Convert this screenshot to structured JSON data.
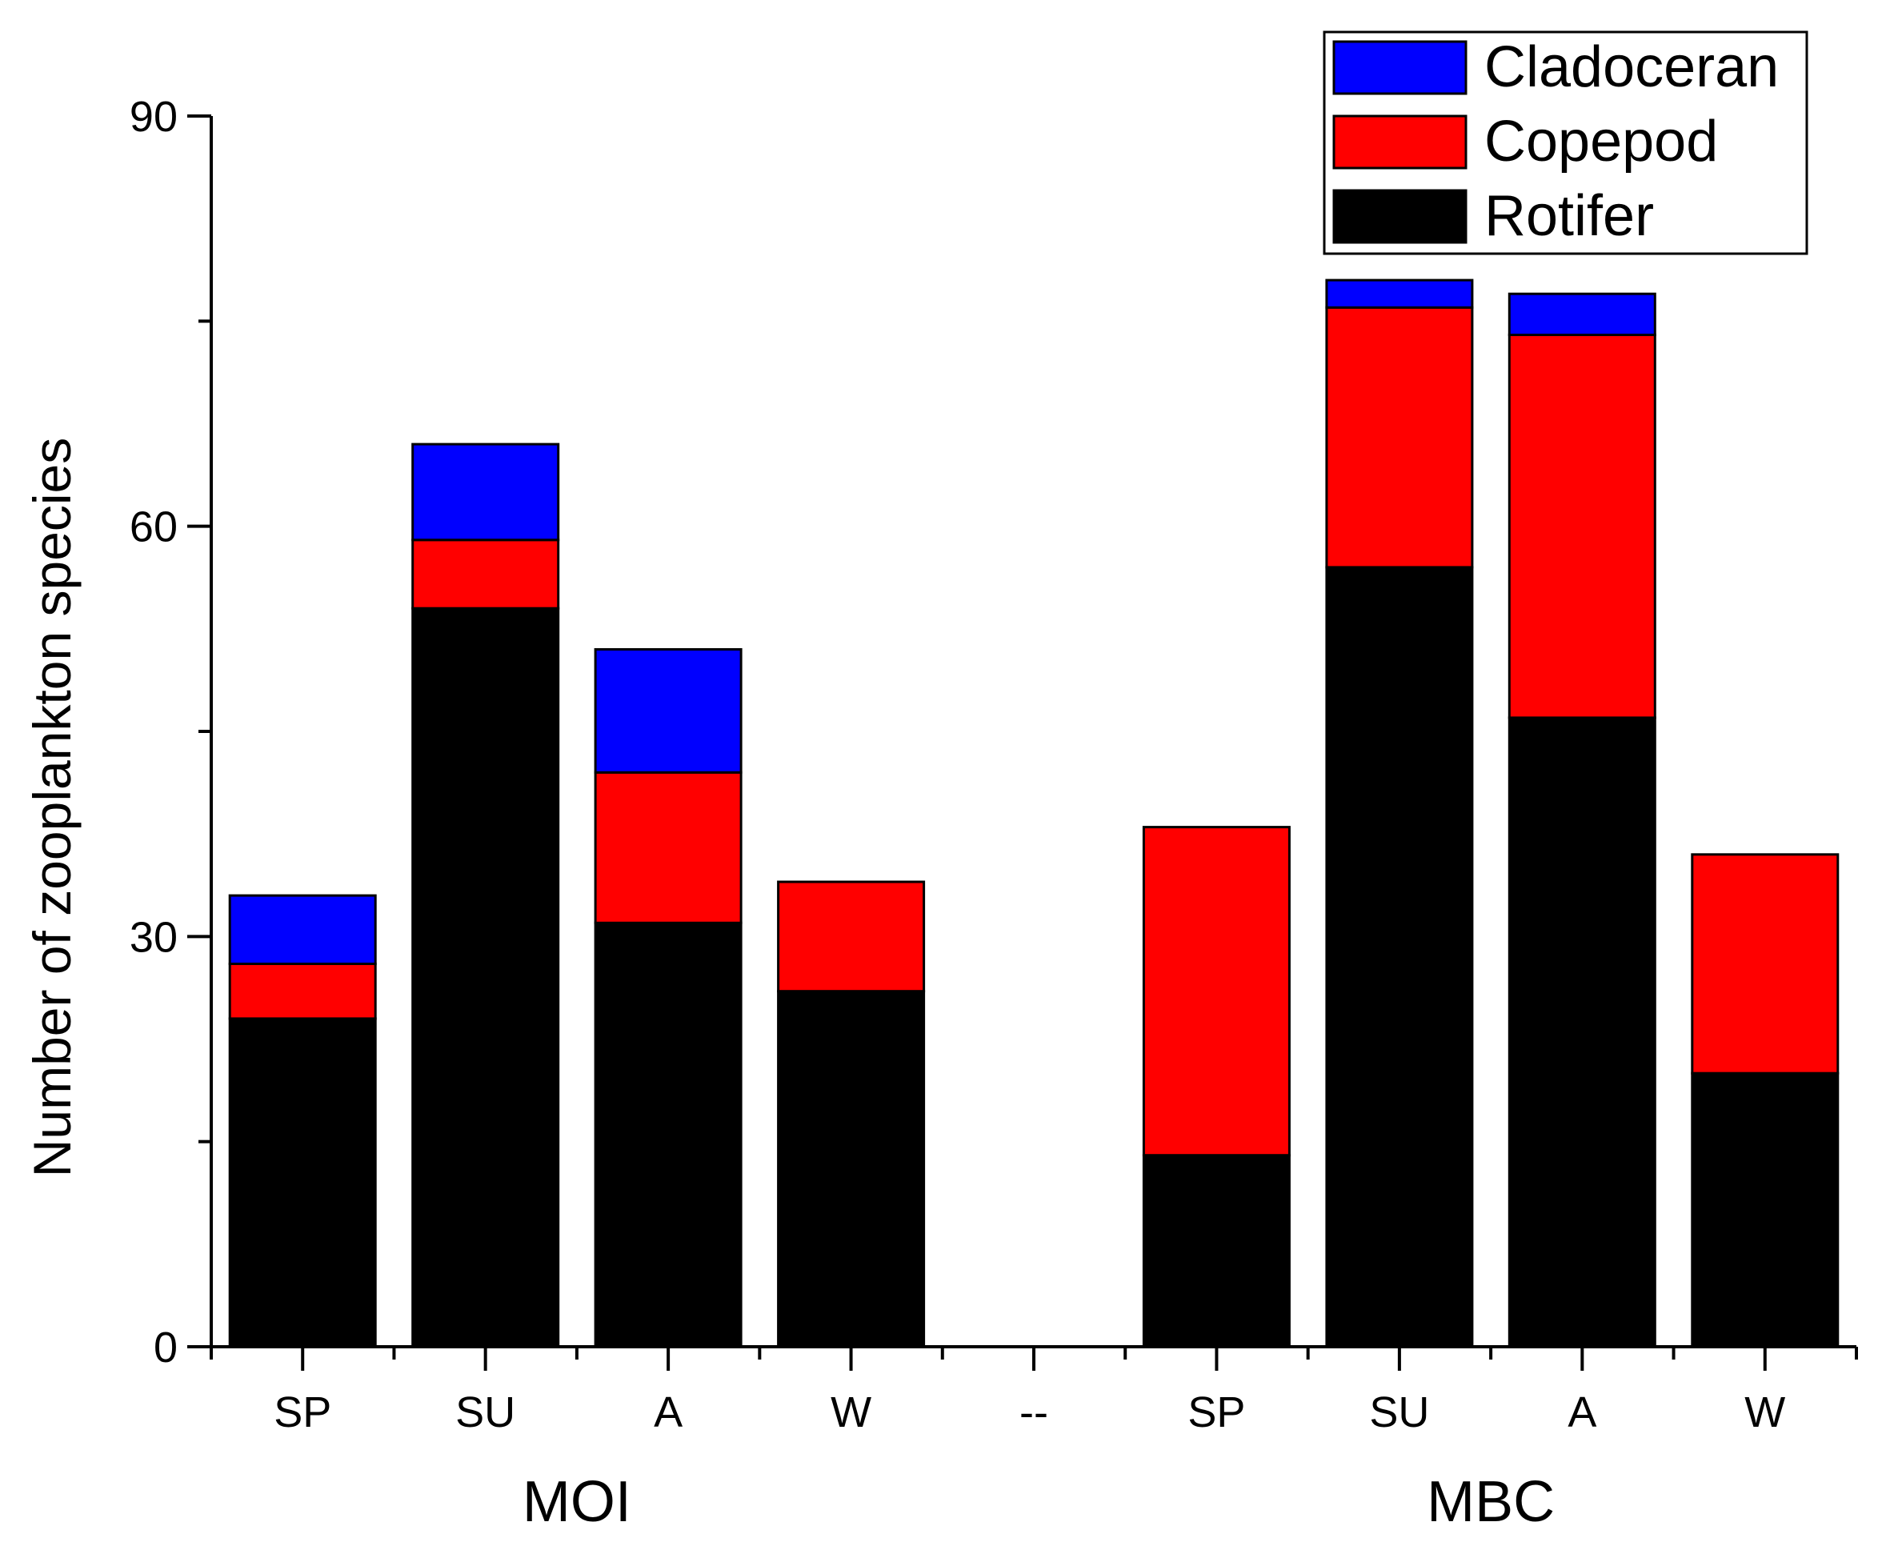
{
  "chart_data": {
    "type": "bar",
    "stacked": true,
    "title": "",
    "xlabel": "",
    "ylabel": "Number of zooplankton species",
    "ylim": [
      0,
      90
    ],
    "yticks": [
      0,
      30,
      60,
      90
    ],
    "minor_ticks": [
      15,
      45,
      75
    ],
    "categories": [
      "SP",
      "SU",
      "A",
      "W",
      "--",
      "SP",
      "SU",
      "A",
      "W"
    ],
    "groups": [
      {
        "label": "MOI",
        "categories": [
          0,
          1,
          2,
          3
        ]
      },
      {
        "label": "MBC",
        "categories": [
          5,
          6,
          7,
          8
        ]
      }
    ],
    "series": [
      {
        "name": "Rotifer",
        "color": "#000000",
        "values": [
          24,
          54,
          31,
          26,
          0,
          14,
          57,
          46,
          20
        ]
      },
      {
        "name": "Copepod",
        "color": "#ff0000",
        "values": [
          4,
          5,
          11,
          8,
          0,
          24,
          19,
          28,
          16
        ]
      },
      {
        "name": "Cladoceran",
        "color": "#0000ff",
        "values": [
          5,
          7,
          9,
          0,
          0,
          0,
          2,
          3,
          0
        ]
      }
    ],
    "legend": {
      "position": "top-right",
      "order": [
        "Cladoceran",
        "Copepod",
        "Rotifer"
      ]
    },
    "grid": false
  }
}
